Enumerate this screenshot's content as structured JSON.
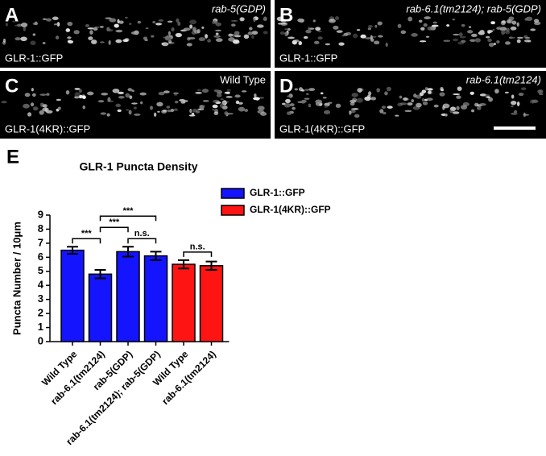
{
  "panels": [
    {
      "letter": "A",
      "genotype": "rab-5(GDP)",
      "italic": true,
      "reporter": "GLR-1::GFP"
    },
    {
      "letter": "B",
      "genotype": "rab-6.1(tm2124); rab-5(GDP)",
      "italic": true,
      "reporter": "GLR-1::GFP"
    },
    {
      "letter": "C",
      "genotype": "Wild Type",
      "italic": false,
      "reporter": "GLR-1(4KR)::GFP"
    },
    {
      "letter": "D",
      "genotype": "rab-6.1(tm2124)",
      "italic": true,
      "reporter": "GLR-1(4KR)::GFP"
    }
  ],
  "chart_data": {
    "type": "bar",
    "panel_letter": "E",
    "title": "GLR-1 Puncta Density",
    "y_label": "Puncta Number / 10μm",
    "categories": [
      "Wild Type",
      "rab-6.1(tm2124)",
      "rab-5(GDP)",
      "rab-6.1(tm2124); rab-5(GDP)",
      "Wild Type",
      "rab-6.1(tm2124)"
    ],
    "series": [
      {
        "name": "GLR-1::GFP",
        "color": "#1414ff",
        "values": [
          6.5,
          4.8,
          6.4,
          6.1,
          null,
          null
        ],
        "errors": [
          0.25,
          0.3,
          0.35,
          0.3,
          null,
          null
        ]
      },
      {
        "name": "GLR-1(4KR)::GFP",
        "color": "#ff1414",
        "values": [
          null,
          null,
          null,
          null,
          5.5,
          5.4
        ],
        "errors": [
          null,
          null,
          null,
          null,
          0.3,
          0.3
        ]
      }
    ],
    "ylim": [
      0,
      9
    ],
    "yticks": [
      0,
      1,
      2,
      3,
      4,
      5,
      6,
      7,
      8,
      9
    ],
    "significance": [
      {
        "from": 0,
        "to": 1,
        "label": "***"
      },
      {
        "from": 2,
        "to": 3,
        "label": "n.s."
      },
      {
        "from": 1,
        "to": 2,
        "label": "***"
      },
      {
        "from": 1,
        "to": 3,
        "label": "***"
      },
      {
        "from": 4,
        "to": 5,
        "label": "n.s."
      }
    ]
  }
}
